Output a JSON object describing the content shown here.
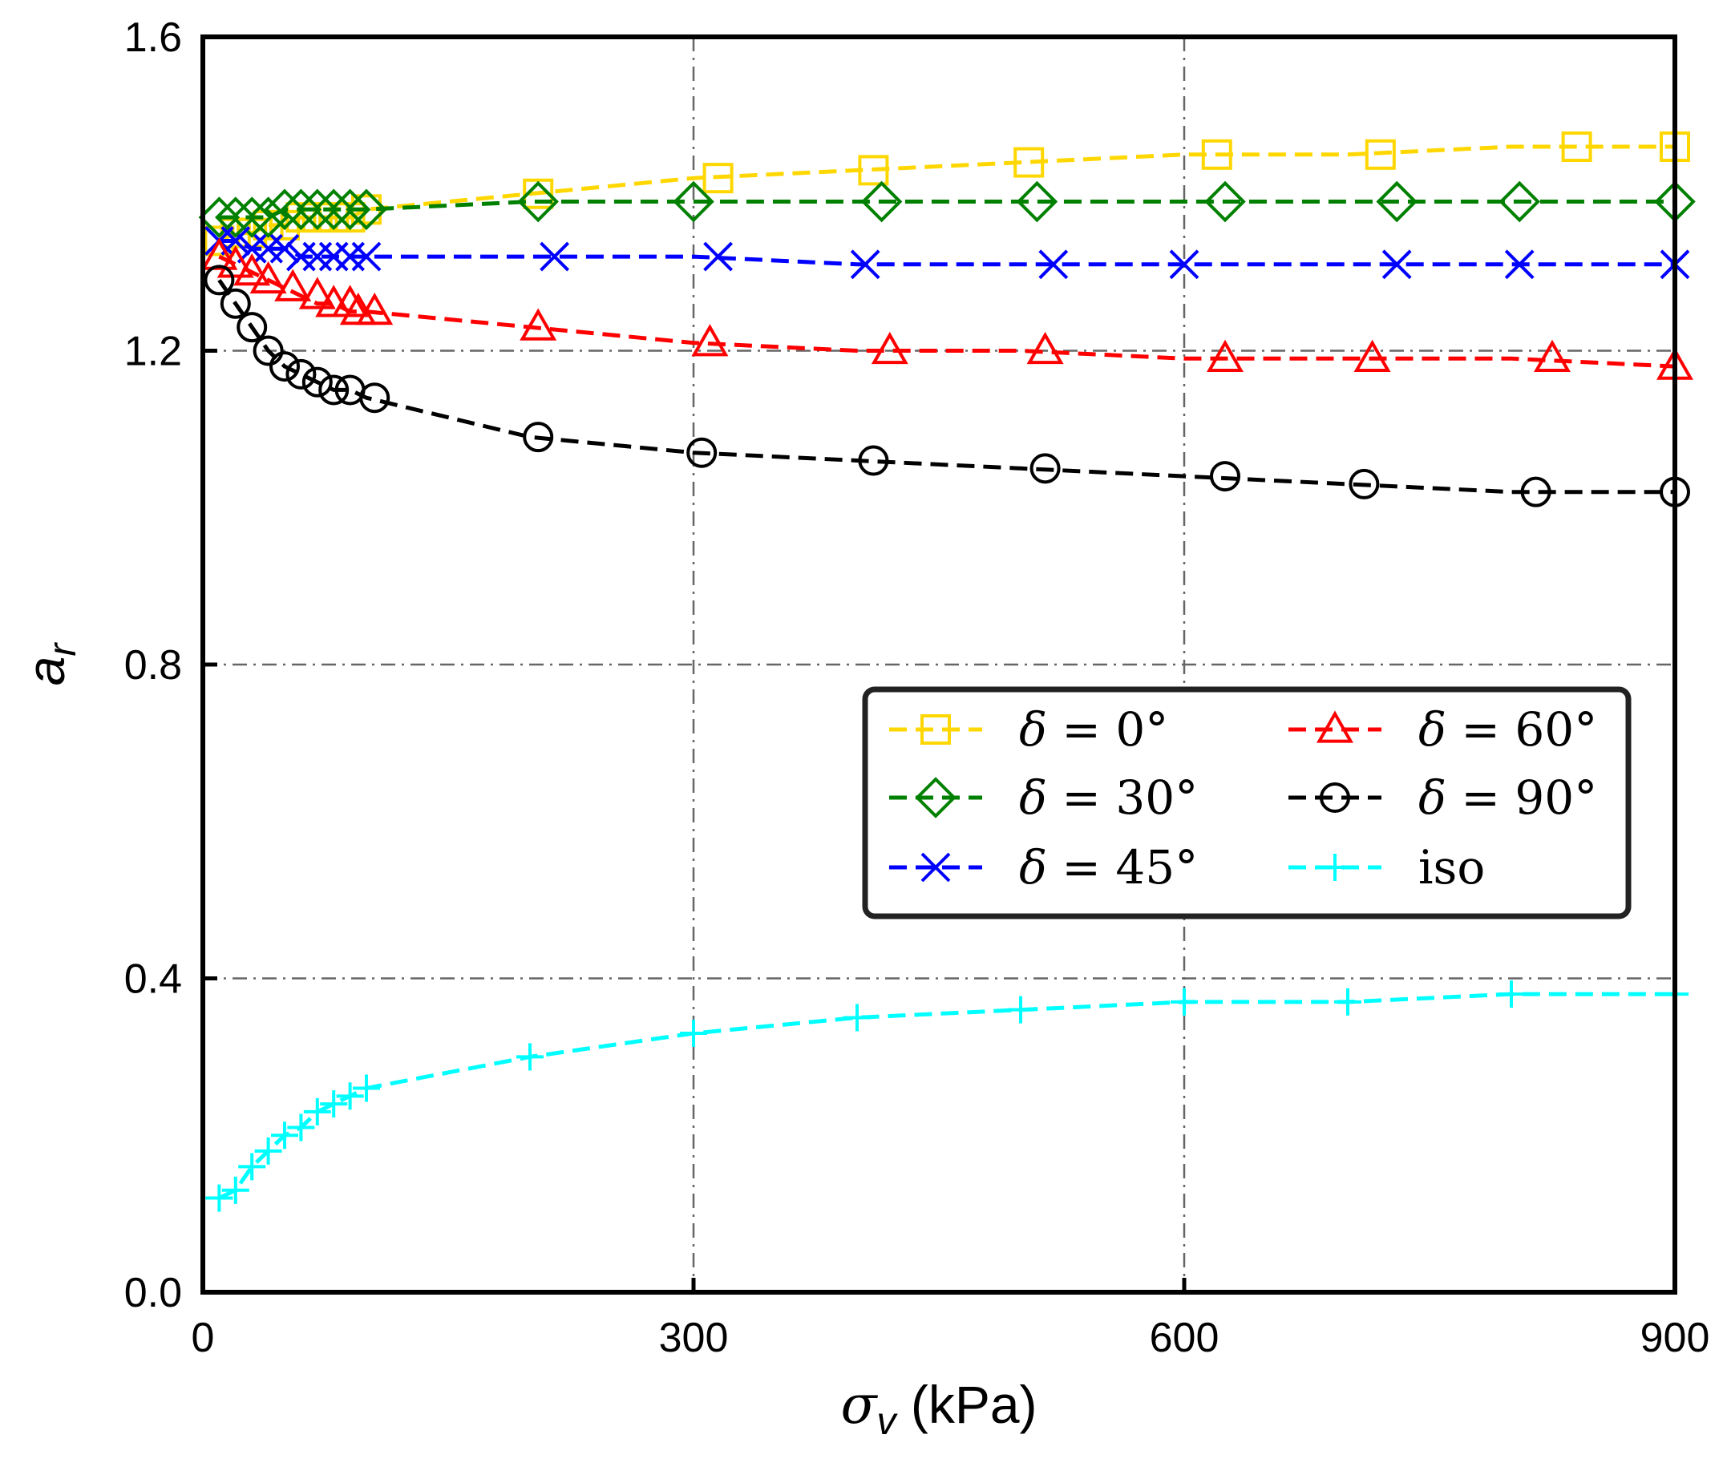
{
  "chart_data": {
    "type": "line",
    "xlabel": "σv (kPa)",
    "xlabel_symbol": "σ",
    "xlabel_sub": "v",
    "xlabel_unit": " (kPa)",
    "ylabel": "ar",
    "ylabel_symbol": "a",
    "ylabel_sub": "r",
    "xlim": [
      0,
      900
    ],
    "ylim": [
      0.0,
      1.6
    ],
    "xticks": [
      0,
      300,
      600,
      900
    ],
    "xtick_labels": [
      "0",
      "300",
      "600",
      "900"
    ],
    "yticks": [
      0.0,
      0.4,
      0.8,
      1.2,
      1.6
    ],
    "ytick_labels": [
      "0.0",
      "0.4",
      "0.8",
      "1.2",
      "1.6"
    ],
    "grid": true,
    "legend_position": "center-right",
    "series": [
      {
        "name": "δ = 0°",
        "legend_symbol": "δ",
        "legend_rest": "= 0°",
        "color": "#FFD700",
        "marker": "square",
        "x": [
          10,
          20,
          30,
          40,
          50,
          60,
          70,
          80,
          90,
          100,
          200,
          300,
          400,
          500,
          600,
          700,
          800,
          900
        ],
        "y": [
          1.34,
          1.35,
          1.35,
          1.36,
          1.36,
          1.37,
          1.37,
          1.37,
          1.37,
          1.38,
          1.4,
          1.42,
          1.43,
          1.44,
          1.45,
          1.45,
          1.46,
          1.46
        ],
        "marker_x": [
          10,
          20,
          30,
          40,
          50,
          60,
          70,
          80,
          90,
          100,
          205,
          315,
          410,
          505,
          620,
          720,
          840,
          900
        ],
        "marker_y": [
          1.34,
          1.35,
          1.35,
          1.36,
          1.36,
          1.37,
          1.37,
          1.37,
          1.37,
          1.38,
          1.4,
          1.42,
          1.43,
          1.44,
          1.45,
          1.45,
          1.46,
          1.46
        ]
      },
      {
        "name": "δ = 30°",
        "legend_symbol": "δ",
        "legend_rest": "= 30°",
        "color": "#008000",
        "marker": "diamond",
        "x": [
          10,
          20,
          30,
          40,
          50,
          60,
          70,
          80,
          90,
          100,
          200,
          300,
          400,
          500,
          600,
          700,
          800,
          900
        ],
        "y": [
          1.37,
          1.37,
          1.37,
          1.37,
          1.38,
          1.38,
          1.38,
          1.38,
          1.38,
          1.38,
          1.39,
          1.39,
          1.39,
          1.39,
          1.39,
          1.39,
          1.39,
          1.39
        ],
        "marker_x": [
          10,
          20,
          30,
          40,
          50,
          60,
          70,
          80,
          90,
          100,
          205,
          300,
          415,
          510,
          625,
          730,
          805,
          900
        ],
        "marker_y": [
          1.37,
          1.37,
          1.37,
          1.37,
          1.38,
          1.38,
          1.38,
          1.38,
          1.38,
          1.38,
          1.39,
          1.39,
          1.39,
          1.39,
          1.39,
          1.39,
          1.39,
          1.39
        ]
      },
      {
        "name": "δ = 45°",
        "legend_symbol": "δ",
        "legend_rest": "= 45°",
        "color": "#0000FF",
        "marker": "x",
        "x": [
          10,
          20,
          30,
          40,
          50,
          60,
          70,
          80,
          90,
          100,
          200,
          300,
          400,
          500,
          600,
          700,
          800,
          900
        ],
        "y": [
          1.34,
          1.34,
          1.33,
          1.33,
          1.33,
          1.32,
          1.32,
          1.32,
          1.32,
          1.32,
          1.32,
          1.32,
          1.31,
          1.31,
          1.31,
          1.31,
          1.31,
          1.31
        ],
        "marker_x": [
          10,
          20,
          30,
          40,
          50,
          60,
          70,
          80,
          90,
          100,
          215,
          315,
          405,
          520,
          600,
          730,
          805,
          900
        ],
        "marker_y": [
          1.34,
          1.34,
          1.33,
          1.33,
          1.33,
          1.32,
          1.32,
          1.32,
          1.32,
          1.32,
          1.32,
          1.32,
          1.31,
          1.31,
          1.31,
          1.31,
          1.31,
          1.31
        ]
      },
      {
        "name": "δ = 60°",
        "legend_symbol": "δ",
        "legend_rest": "= 60°",
        "color": "#FF0000",
        "marker": "triangle",
        "x": [
          10,
          20,
          30,
          40,
          50,
          60,
          70,
          80,
          90,
          100,
          200,
          300,
          400,
          500,
          600,
          700,
          800,
          900
        ],
        "y": [
          1.32,
          1.31,
          1.3,
          1.29,
          1.28,
          1.27,
          1.26,
          1.26,
          1.25,
          1.25,
          1.23,
          1.21,
          1.2,
          1.2,
          1.19,
          1.19,
          1.19,
          1.18
        ],
        "marker_x": [
          10,
          20,
          30,
          40,
          55,
          70,
          80,
          90,
          95,
          105,
          205,
          310,
          420,
          515,
          625,
          715,
          825,
          900
        ],
        "marker_y": [
          1.32,
          1.31,
          1.3,
          1.29,
          1.28,
          1.27,
          1.26,
          1.26,
          1.25,
          1.25,
          1.23,
          1.21,
          1.2,
          1.2,
          1.19,
          1.19,
          1.19,
          1.18
        ]
      },
      {
        "name": "δ = 90°",
        "legend_symbol": "δ",
        "legend_rest": "= 90°",
        "color": "#000000",
        "marker": "circle",
        "x": [
          10,
          20,
          30,
          40,
          50,
          60,
          70,
          80,
          90,
          100,
          200,
          300,
          400,
          500,
          600,
          700,
          800,
          900
        ],
        "y": [
          1.29,
          1.26,
          1.23,
          1.2,
          1.18,
          1.17,
          1.16,
          1.15,
          1.15,
          1.14,
          1.09,
          1.07,
          1.06,
          1.05,
          1.04,
          1.03,
          1.02,
          1.02
        ],
        "marker_x": [
          10,
          20,
          30,
          40,
          50,
          60,
          70,
          80,
          90,
          105,
          205,
          305,
          410,
          515,
          625,
          710,
          815,
          900
        ],
        "marker_y": [
          1.29,
          1.26,
          1.23,
          1.2,
          1.18,
          1.17,
          1.16,
          1.15,
          1.15,
          1.14,
          1.09,
          1.07,
          1.06,
          1.05,
          1.04,
          1.03,
          1.02,
          1.02
        ]
      },
      {
        "name": "iso",
        "legend_symbol": "",
        "legend_rest": "iso",
        "color": "#00FFFF",
        "marker": "plus",
        "x": [
          10,
          20,
          30,
          40,
          50,
          60,
          70,
          80,
          90,
          100,
          200,
          300,
          400,
          500,
          600,
          700,
          800,
          900
        ],
        "y": [
          0.12,
          0.13,
          0.16,
          0.18,
          0.2,
          0.21,
          0.23,
          0.24,
          0.25,
          0.26,
          0.3,
          0.33,
          0.35,
          0.36,
          0.37,
          0.37,
          0.38,
          0.38
        ],
        "marker_x": [
          10,
          20,
          30,
          40,
          50,
          60,
          70,
          80,
          90,
          100,
          200,
          300,
          400,
          500,
          600,
          700,
          800,
          900
        ],
        "marker_y": [
          0.12,
          0.13,
          0.16,
          0.18,
          0.2,
          0.21,
          0.23,
          0.24,
          0.25,
          0.26,
          0.3,
          0.33,
          0.35,
          0.36,
          0.37,
          0.37,
          0.38,
          0.38
        ]
      }
    ]
  }
}
